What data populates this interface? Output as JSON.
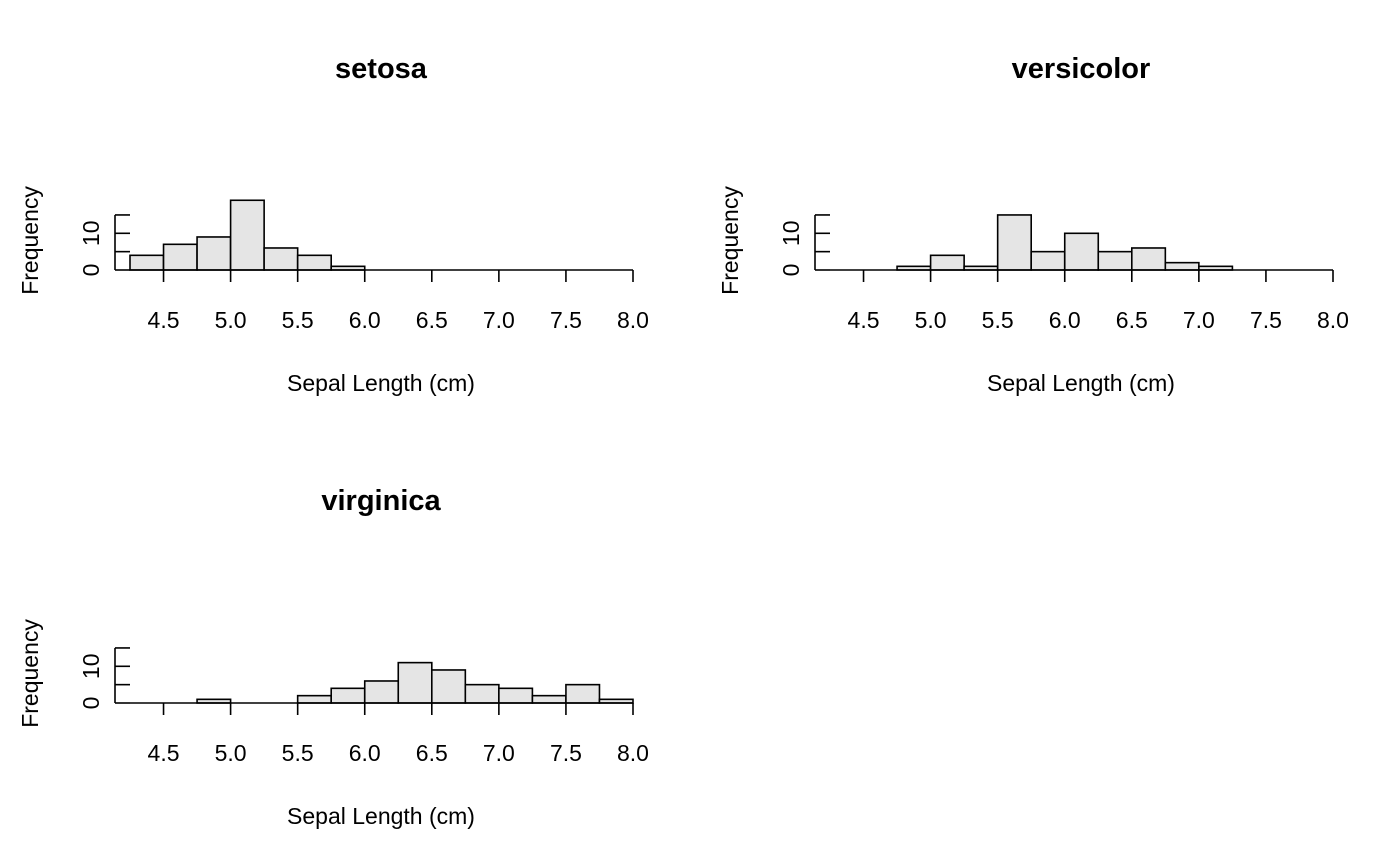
{
  "chart_data": [
    {
      "type": "bar",
      "title": "setosa",
      "xlabel": "Sepal Length (cm)",
      "ylabel": "Frequency",
      "bin_width": 0.25,
      "bin_starts": [
        4.25,
        4.5,
        4.75,
        5.0,
        5.25,
        5.5,
        5.75
      ],
      "values": [
        4,
        7,
        9,
        19,
        6,
        4,
        1
      ],
      "xlim": [
        4.25,
        8.0
      ],
      "ylim": [
        0,
        15
      ],
      "xticks": [
        "4.5",
        "5.0",
        "5.5",
        "6.0",
        "6.5",
        "7.0",
        "7.5",
        "8.0"
      ],
      "yticks": [
        "0",
        "10"
      ],
      "grid": false
    },
    {
      "type": "bar",
      "title": "versicolor",
      "xlabel": "Sepal Length (cm)",
      "ylabel": "Frequency",
      "bin_width": 0.25,
      "bin_starts": [
        4.25,
        4.5,
        4.75,
        5.0,
        5.25,
        5.5,
        5.75,
        6.0,
        6.25,
        6.5,
        6.75,
        7.0,
        7.25,
        7.5,
        7.75
      ],
      "values": [
        0,
        0,
        1,
        4,
        1,
        15,
        5,
        10,
        5,
        6,
        2,
        1,
        0,
        0,
        0
      ],
      "xlim": [
        4.25,
        8.0
      ],
      "ylim": [
        0,
        15
      ],
      "xticks": [
        "4.5",
        "5.0",
        "5.5",
        "6.0",
        "6.5",
        "7.0",
        "7.5",
        "8.0"
      ],
      "yticks": [
        "0",
        "10"
      ],
      "grid": false
    },
    {
      "type": "bar",
      "title": "virginica",
      "xlabel": "Sepal Length (cm)",
      "ylabel": "Frequency",
      "bin_width": 0.25,
      "bin_starts": [
        4.25,
        4.5,
        4.75,
        5.0,
        5.25,
        5.5,
        5.75,
        6.0,
        6.25,
        6.5,
        6.75,
        7.0,
        7.25,
        7.5,
        7.75
      ],
      "values": [
        0,
        0,
        1,
        0,
        0,
        2,
        4,
        6,
        11,
        9,
        5,
        4,
        2,
        5,
        1
      ],
      "xlim": [
        4.25,
        8.0
      ],
      "ylim": [
        0,
        15
      ],
      "xticks": [
        "4.5",
        "5.0",
        "5.5",
        "6.0",
        "6.5",
        "7.0",
        "7.5",
        "8.0"
      ],
      "yticks": [
        "0",
        "10"
      ],
      "grid": false
    }
  ],
  "colors": {
    "bar_fill": "#e5e5e5",
    "bar_stroke": "#000000",
    "background": "#ffffff"
  }
}
